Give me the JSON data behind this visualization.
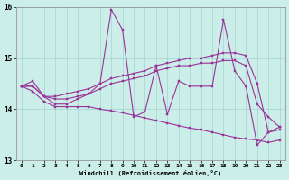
{
  "xlabel": "Windchill (Refroidissement éolien,°C)",
  "xlim": [
    -0.5,
    23.5
  ],
  "ylim": [
    13,
    16
  ],
  "yticks": [
    13,
    14,
    15,
    16
  ],
  "xticks": [
    0,
    1,
    2,
    3,
    4,
    5,
    6,
    7,
    8,
    9,
    10,
    11,
    12,
    13,
    14,
    15,
    16,
    17,
    18,
    19,
    20,
    21,
    22,
    23
  ],
  "bg_color": "#cceee8",
  "line_color": "#993399",
  "line1_y": [
    14.45,
    14.55,
    14.25,
    14.1,
    14.1,
    14.2,
    14.3,
    14.5,
    15.95,
    15.55,
    13.85,
    13.95,
    14.85,
    13.9,
    14.55,
    14.45,
    14.45,
    14.45,
    15.75,
    14.75,
    14.45,
    13.3,
    13.55,
    13.6
  ],
  "line2_y": [
    14.45,
    14.45,
    14.25,
    14.25,
    14.3,
    14.35,
    14.4,
    14.5,
    14.6,
    14.65,
    14.7,
    14.75,
    14.85,
    14.9,
    14.95,
    15.0,
    15.0,
    15.05,
    15.1,
    15.1,
    15.05,
    14.5,
    13.55,
    13.65
  ],
  "line3_y": [
    14.45,
    14.45,
    14.25,
    14.2,
    14.2,
    14.25,
    14.3,
    14.4,
    14.5,
    14.55,
    14.6,
    14.65,
    14.75,
    14.8,
    14.85,
    14.85,
    14.9,
    14.9,
    14.95,
    14.95,
    14.85,
    14.1,
    13.85,
    13.65
  ],
  "line4_y": [
    14.45,
    14.35,
    14.15,
    14.05,
    14.05,
    14.05,
    14.05,
    14.0,
    13.97,
    13.93,
    13.88,
    13.83,
    13.78,
    13.73,
    13.68,
    13.63,
    13.6,
    13.55,
    13.5,
    13.45,
    13.42,
    13.4,
    13.35,
    13.4
  ]
}
